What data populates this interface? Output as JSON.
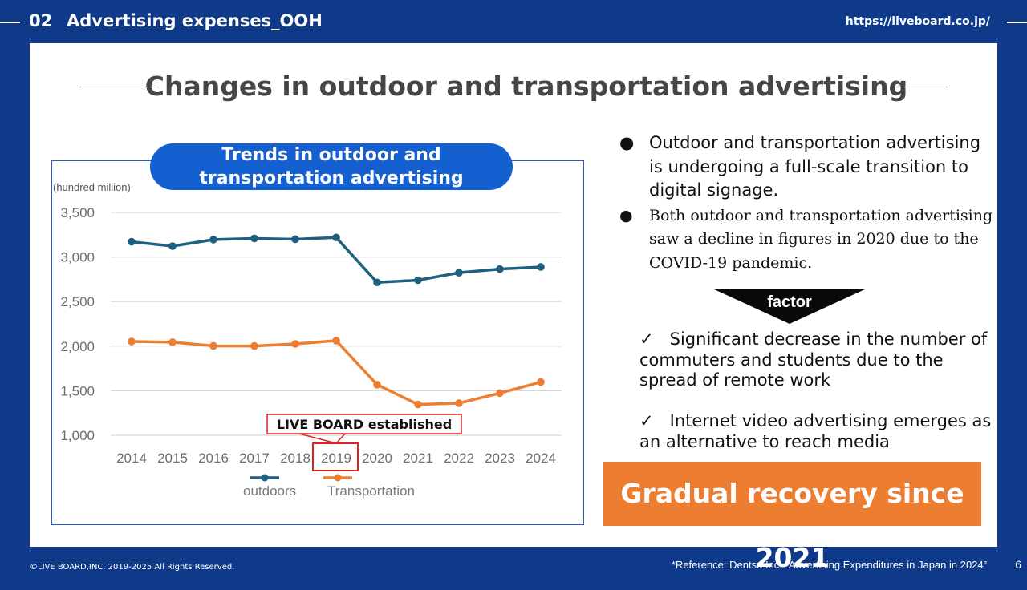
{
  "header": {
    "section_number": "02",
    "section_title": "Advertising expenses_OOH",
    "url": "https://liveboard.co.jp/"
  },
  "title": "Changes in outdoor and transportation advertising",
  "chart_title_line1": "Trends in outdoor and",
  "chart_title_line2": "transportation advertising expenses",
  "chart_data": {
    "type": "line",
    "title": "Trends in outdoor and transportation advertising expenses",
    "unit_label": "(hundred million)",
    "x": [
      "2014",
      "2015",
      "2016",
      "2017",
      "2018",
      "2019",
      "2020",
      "2021",
      "2022",
      "2023",
      "2024"
    ],
    "yticks": [
      "3,500",
      "3,000",
      "2,500",
      "2,000",
      "1,500",
      "1,000"
    ],
    "ylim": [
      1000,
      3500
    ],
    "series": [
      {
        "name": "outdoors",
        "color": "#1f5f80",
        "values": [
          3171,
          3122,
          3195,
          3208,
          3199,
          3219,
          2715,
          2740,
          2824,
          2865,
          2889
        ]
      },
      {
        "name": "Transportation",
        "color": "#ed7d31",
        "values": [
          2052,
          2044,
          2003,
          2002,
          2025,
          2062,
          1568,
          1346,
          1360,
          1473,
          1598
        ]
      }
    ],
    "annotation": {
      "label": "LIVE BOARD established",
      "x": "2019"
    }
  },
  "bullets": [
    "Outdoor and transportation advertising is undergoing a full-scale transition to digital signage.",
    "Both outdoor and transportation advertising saw a decline in figures in 2020 due to the COVID-19 pandemic."
  ],
  "factor_label": "factor",
  "checks": [
    "Significant decrease in the number of commuters and students due to the spread of remote work",
    "Internet video advertising emerges as an alternative to reach media"
  ],
  "check_mark": "✓",
  "bullet_mark": "●",
  "conclusion": "Gradual recovery since 2021",
  "footer": {
    "copyright": "©LIVE BOARD,INC. 2019-2025 All Rights Reserved.",
    "reference": "*Reference: Dentsu Inc. “Advertising Expenditures in Japan in 2024”",
    "page": "6"
  },
  "colors": {
    "navy": "#0f3a8a",
    "accent_blue": "#1560d0",
    "orange": "#ed7d31",
    "teal": "#1f5f80"
  }
}
